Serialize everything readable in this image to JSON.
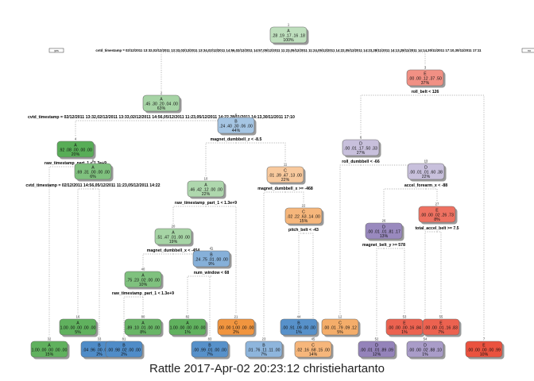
{
  "caption": "Rattle 2017-Apr-02 20:23:12 christiehartanto",
  "root_yes_tag": "yes",
  "root_no_tag": "no",
  "colors": {
    "A": "#41a23f",
    "B": "#3f82c3",
    "C": "#f08c2e",
    "D": "#7f6bad",
    "E": "#e8432e"
  },
  "nodes": [
    {
      "id": "1",
      "class": "A",
      "probs": ".28 .19 .17 .16 .18",
      "pct": "100%",
      "split": "cvtd_timestamp = 02/12/2011 13:32,02/12/2011 13:33,02/12/2011 13:34,02/12/2011 14:56,02/12/2011 14:57,05/12/2011 11:23,05/12/2011 11:24,05/12/2011 14:22,05/12/2011 14:23,28/11/2011 14:13,28/11/2011 14:14,30/11/2011 17:10,30/11/2011 17:11",
      "strength": 0.2
    },
    {
      "id": "2",
      "class": "A",
      "probs": ".45 .30 .20 .04 .00",
      "pct": "63%",
      "split": "cvtd_timestamp = 02/12/2011 13:32,02/12/2011 13:33,02/12/2011 14:56,05/12/2011 11:23,05/12/2011 14:22,28/11/2011 14:13,30/11/2011 17:10",
      "strength": 0.35
    },
    {
      "id": "4",
      "class": "A",
      "probs": ".92 .08 .00 .00 .00",
      "pct": "20%",
      "split": "raw_timestamp_part_1 < 1.3e+9",
      "strength": 0.85
    },
    {
      "id": "8",
      "class": "A",
      "probs": ".69 .31 .00 .00 .00",
      "pct": "6%",
      "split": "cvtd_timestamp = 02/12/2011 14:56,05/12/2011 11:23,05/12/2011 14:22",
      "strength": 0.6
    },
    {
      "id": "16",
      "class": "A",
      "probs": "1.00 .00 .00 .00 .00",
      "pct": "5%",
      "split": "",
      "strength": 0.8
    },
    {
      "id": "32",
      "class": "A",
      "probs": "1.00 .00 .00 .00 .00",
      "pct": "15%",
      "split": "",
      "strength": 0.8
    },
    {
      "id": "33",
      "class": "B",
      "probs": ".04 .96 .00 .00 .00",
      "pct": "2%",
      "split": "",
      "strength": 0.9
    },
    {
      "id": "5",
      "class": "B",
      "probs": ".24 .40 .30 .06 .00",
      "pct": "44%",
      "split": "magnet_dumbbell_z < -8.5",
      "strength": 0.35
    },
    {
      "id": "10",
      "class": "A",
      "probs": ".46 .42 .12 .00 .00",
      "pct": "22%",
      "split": "raw_timestamp_part_1 < 1.3e+9",
      "strength": 0.3
    },
    {
      "id": "20",
      "class": "A",
      "probs": ".51 .47 .01 .00 .00",
      "pct": "19%",
      "split": "magnet_dumbbell_x < -454",
      "strength": 0.35
    },
    {
      "id": "40",
      "class": "A",
      "probs": ".75 .23 .02 .00 .00",
      "pct": "10%",
      "split": "raw_timestamp_part_1 < 1.3e+9",
      "strength": 0.6
    },
    {
      "id": "80",
      "class": "A",
      "probs": ".89 .10 .01 .00 .00",
      "pct": "8%",
      "split": "",
      "strength": 0.75
    },
    {
      "id": "81",
      "class": "B",
      "probs": ".00 .98 .02 .00 .00",
      "pct": "2%",
      "split": "",
      "strength": 0.9
    },
    {
      "id": "41",
      "class": "B",
      "probs": ".24 .75 .01 .00 .00",
      "pct": "9%",
      "split": "num_window < 68",
      "strength": 0.55
    },
    {
      "id": "82",
      "class": "A",
      "probs": "1.00 .00 .00 .00 .00",
      "pct": "1%",
      "split": "",
      "strength": 0.8
    },
    {
      "id": "83",
      "class": "B",
      "probs": ".00 .99 .01 .00 .00",
      "pct": "7%",
      "split": "",
      "strength": 0.85
    },
    {
      "id": "21",
      "class": "C",
      "probs": ".00 .00 1.00 .00 .00",
      "pct": "2%",
      "split": "",
      "strength": 0.9
    },
    {
      "id": "11",
      "class": "C",
      "probs": ".01 .39 .47 .13 .00",
      "pct": "22%",
      "split": "magnet_dumbbell_x >= -468",
      "strength": 0.35
    },
    {
      "id": "22",
      "class": "C",
      "probs": ".02 .22 .63 .14 .00",
      "pct": "15%",
      "split": "pitch_belt < -43",
      "strength": 0.55
    },
    {
      "id": "44",
      "class": "B",
      "probs": ".00 .91 .09 .00 .00",
      "pct": "1%",
      "split": "",
      "strength": 0.85
    },
    {
      "id": "45",
      "class": "C",
      "probs": ".02 .16 .68 .15 .00",
      "pct": "14%",
      "split": "",
      "strength": 0.55
    },
    {
      "id": "23",
      "class": "B",
      "probs": ".01 .76 .11 .11 .00",
      "pct": "7%",
      "split": "",
      "strength": 0.5
    },
    {
      "id": "3",
      "class": "E",
      "probs": ".00 .00 .12 .37 .50",
      "pct": "37%",
      "split": "roll_belt < 126",
      "strength": 0.5
    },
    {
      "id": "6",
      "class": "D",
      "probs": ".00 .01 .17 .50 .33",
      "pct": "27%",
      "split": "roll_dumbbell < -66",
      "strength": 0.3
    },
    {
      "id": "12",
      "class": "C",
      "probs": ".00 .01 .79 .09 .12",
      "pct": "5%",
      "split": "",
      "strength": 0.65
    },
    {
      "id": "13",
      "class": "D",
      "probs": ".00 .01 .01 .60 .38",
      "pct": "22%",
      "split": "accel_forearm_x < -88",
      "strength": 0.3
    },
    {
      "id": "26",
      "class": "D",
      "probs": ".00 .01 .01 .81 .17",
      "pct": "13%",
      "split": "magnet_belt_y >= 578",
      "strength": 0.75
    },
    {
      "id": "52",
      "class": "D",
      "probs": ".00 .01 .01 .89 .09",
      "pct": "12%",
      "split": "",
      "strength": 0.8
    },
    {
      "id": "53",
      "class": "E",
      "probs": ".00 .00 .00 .16 .84",
      "pct": "1%",
      "split": "",
      "strength": 0.8
    },
    {
      "id": "27",
      "class": "E",
      "probs": ".00 .00 .02 .26 .73",
      "pct": "8%",
      "split": "total_accel_belt >= 7.5",
      "strength": 0.7
    },
    {
      "id": "54",
      "class": "D",
      "probs": ".00 .00 .02 .88 .10",
      "pct": "1%",
      "split": "",
      "strength": 0.6
    },
    {
      "id": "55",
      "class": "E",
      "probs": ".00 .00 .01 .16 .83",
      "pct": "7%",
      "split": "",
      "strength": 0.8
    },
    {
      "id": "7",
      "class": "E",
      "probs": ".00 .00 .00 .00 .99",
      "pct": "10%",
      "split": "",
      "strength": 0.9
    }
  ]
}
